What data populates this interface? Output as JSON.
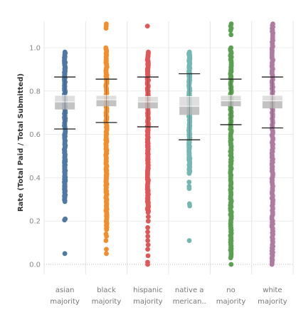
{
  "chart_data": {
    "type": "scatter",
    "ylabel": "Rate (Total Paid / Total Submitted)",
    "ylim": [
      0,
      1.12
    ],
    "yticks": [
      0.0,
      0.2,
      0.4,
      0.6,
      0.8,
      1.0
    ],
    "ytick_labels": [
      "0.0",
      "0.2",
      "0.4",
      "0.6",
      "0.8",
      "1.0"
    ],
    "categories": [
      {
        "line1": "asian",
        "line2": "majority"
      },
      {
        "line1": "black",
        "line2": "majority"
      },
      {
        "line1": "hispanic",
        "line2": "majority"
      },
      {
        "line1": "native a",
        "line2": "merican.."
      },
      {
        "line1": "no",
        "line2": "majority"
      },
      {
        "line1": "white",
        "line2": "majority"
      }
    ],
    "series": [
      {
        "color": "#4e79a7",
        "points_dense_range": [
          0.29,
          0.98
        ],
        "points_sparse": [
          0.05,
          0.205,
          0.21
        ],
        "box": {
          "q1": 0.715,
          "median": 0.75,
          "q3": 0.78
        },
        "whiskers": [
          0.625,
          0.865
        ]
      },
      {
        "color": "#f28e2b",
        "points_dense_range": [
          0.16,
          1.0
        ],
        "points_sparse": [
          0.05,
          0.07,
          0.11,
          0.13,
          0.14,
          1.09,
          1.1,
          1.11
        ],
        "box": {
          "q1": 0.73,
          "median": 0.76,
          "q3": 0.78
        },
        "whiskers": [
          0.655,
          0.855
        ]
      },
      {
        "color": "#e15759",
        "points_dense_range": [
          0.24,
          0.98
        ],
        "points_sparse": [
          0.0,
          0.01,
          0.04,
          0.07,
          0.09,
          0.11,
          0.13,
          0.15,
          0.17,
          0.2,
          0.22,
          1.1
        ],
        "box": {
          "q1": 0.72,
          "median": 0.75,
          "q3": 0.775
        },
        "whiskers": [
          0.635,
          0.865
        ]
      },
      {
        "color": "#76b7b2",
        "points_dense_range": [
          0.42,
          0.98
        ],
        "points_sparse": [
          0.11,
          0.27,
          0.28,
          0.35,
          0.36,
          0.38
        ],
        "box": {
          "q1": 0.69,
          "median": 0.73,
          "q3": 0.775
        },
        "whiskers": [
          0.575,
          0.88
        ]
      },
      {
        "color": "#59a14f",
        "points_dense_range": [
          0.03,
          1.0
        ],
        "points_sparse": [
          0.0,
          1.06,
          1.08,
          1.09,
          1.1,
          1.11
        ],
        "box": {
          "q1": 0.73,
          "median": 0.755,
          "q3": 0.78
        },
        "whiskers": [
          0.645,
          0.855
        ]
      },
      {
        "color": "#b07aa1",
        "points_dense_range": [
          0.0,
          1.11
        ],
        "points_sparse": [],
        "box": {
          "q1": 0.72,
          "median": 0.755,
          "q3": 0.78
        },
        "whiskers": [
          0.63,
          0.865
        ]
      }
    ],
    "grid": true,
    "legend": "none"
  }
}
